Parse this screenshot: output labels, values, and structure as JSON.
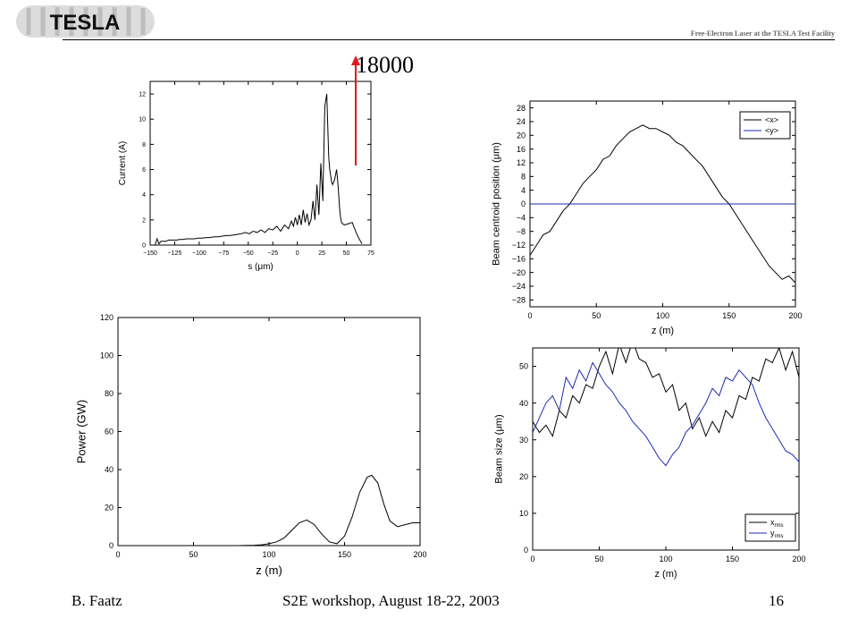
{
  "header": {
    "logo_text": "TESLA",
    "subtitle": "Free-Electron Laser at the TESLA Test Facility"
  },
  "annotation": {
    "value": "18000",
    "arrow_color": "#e0191c"
  },
  "footer": {
    "author": "B. Faatz",
    "event": "S2E workshop, August 18-22, 2003",
    "page": "16"
  },
  "chart_data": [
    {
      "id": "current",
      "type": "line",
      "xlabel": "s (μm)",
      "ylabel": "Current (A)",
      "xlim": [
        -150,
        75
      ],
      "ylim": [
        0,
        13
      ],
      "xticks": [
        -150,
        -125,
        -100,
        -75,
        -50,
        -25,
        0,
        25,
        50,
        75
      ],
      "yticks": [
        0,
        2,
        4,
        6,
        8,
        10,
        12
      ],
      "series": [
        {
          "color": "#000000",
          "x": [
            -145,
            -143,
            -141,
            -139,
            -137,
            -134,
            -131,
            -127,
            -123,
            -120,
            -117,
            -113,
            -109,
            -105,
            -101,
            -97,
            -93,
            -89,
            -85,
            -81,
            -77,
            -73,
            -69,
            -65,
            -61,
            -57,
            -53,
            -49,
            -45,
            -41,
            -37,
            -33,
            -29,
            -25,
            -21,
            -17,
            -13,
            -9,
            -6,
            -4,
            -2,
            0,
            2,
            4,
            6,
            8,
            10,
            12,
            14,
            16,
            18,
            20,
            22,
            24,
            26,
            28,
            30,
            31,
            32,
            33,
            34,
            35,
            36,
            37,
            38,
            39,
            40,
            41,
            42,
            43,
            44,
            45,
            46,
            48,
            52,
            56,
            60,
            63,
            66
          ],
          "y": [
            0,
            0.5,
            0.1,
            0.3,
            0.3,
            0.3,
            0.4,
            0.4,
            0.4,
            0.45,
            0.45,
            0.5,
            0.5,
            0.5,
            0.55,
            0.55,
            0.6,
            0.6,
            0.65,
            0.65,
            0.7,
            0.75,
            0.75,
            0.8,
            0.85,
            0.9,
            1.0,
            0.9,
            1.1,
            1.0,
            1.2,
            1.0,
            1.3,
            1.2,
            1.5,
            1.1,
            1.6,
            1.3,
            1.9,
            1.5,
            2.2,
            1.6,
            2.4,
            1.6,
            2.8,
            1.8,
            2.5,
            1.6,
            2.0,
            3.5,
            2.0,
            4.8,
            2.4,
            6.5,
            3.5,
            11.0,
            12.0,
            9.5,
            7.0,
            6.0,
            5.5,
            5.0,
            4.8,
            5.0,
            5.2,
            5.6,
            6.0,
            5.2,
            4.2,
            3.0,
            2.2,
            1.8,
            1.7,
            1.6,
            1.7,
            1.8,
            1.0,
            0.5,
            0.1
          ]
        }
      ]
    },
    {
      "id": "centroid",
      "type": "line",
      "xlabel": "z (m)",
      "ylabel": "Beam centroid position (μm)",
      "xlim": [
        0,
        200
      ],
      "ylim": [
        -30,
        30
      ],
      "xticks": [
        0,
        50,
        100,
        150,
        200
      ],
      "yticks": [
        28,
        24,
        20,
        16,
        12,
        8,
        4,
        0,
        -4,
        -8,
        -12,
        -16,
        -20,
        -24,
        -28
      ],
      "legend": "top-right",
      "series": [
        {
          "name": "<x>",
          "color": "#000000",
          "x": [
            0,
            5,
            10,
            15,
            20,
            25,
            30,
            35,
            40,
            45,
            50,
            55,
            60,
            65,
            70,
            75,
            80,
            85,
            90,
            95,
            100,
            105,
            110,
            115,
            120,
            125,
            130,
            135,
            140,
            145,
            150,
            155,
            160,
            165,
            170,
            175,
            180,
            185,
            190,
            195,
            200
          ],
          "y": [
            -15,
            -12,
            -9,
            -8,
            -5,
            -2,
            0,
            3,
            6,
            8,
            10,
            13,
            14,
            17,
            19,
            21,
            22,
            23,
            22,
            22,
            21,
            20,
            18,
            17,
            15,
            13,
            11,
            8,
            5,
            2,
            0,
            -3,
            -6,
            -9,
            -12,
            -15,
            -18,
            -20,
            -22,
            -21,
            -23
          ]
        },
        {
          "name": "<y>",
          "color": "#1f2bb0",
          "x": [
            0,
            200
          ],
          "y": [
            0,
            0
          ]
        }
      ]
    },
    {
      "id": "power",
      "type": "line",
      "xlabel": "z (m)",
      "ylabel": "Power (GW)",
      "xlim": [
        0,
        200
      ],
      "ylim": [
        0,
        120
      ],
      "xticks": [
        0,
        50,
        100,
        150,
        200
      ],
      "yticks": [
        0,
        20,
        40,
        60,
        80,
        100,
        120
      ],
      "series": [
        {
          "color": "#000000",
          "x": [
            0,
            40,
            60,
            80,
            90,
            95,
            100,
            105,
            110,
            115,
            120,
            125,
            130,
            135,
            140,
            145,
            150,
            155,
            160,
            165,
            168,
            172,
            176,
            180,
            185,
            190,
            195,
            200
          ],
          "y": [
            0,
            0,
            0,
            0,
            0.2,
            0.4,
            1,
            2,
            4,
            8,
            12,
            13.5,
            11,
            6,
            2,
            1,
            5,
            15,
            28,
            36,
            37,
            33,
            22,
            13,
            10,
            11,
            12,
            12
          ]
        }
      ]
    },
    {
      "id": "size",
      "type": "line",
      "xlabel": "z (m)",
      "ylabel": "Beam size (μm)",
      "xlim": [
        0,
        200
      ],
      "ylim": [
        0,
        55
      ],
      "xticks": [
        0,
        50,
        100,
        150,
        200
      ],
      "yticks": [
        0,
        10,
        20,
        30,
        40,
        50
      ],
      "legend": "bottom-right",
      "series": [
        {
          "name": "x",
          "subscript": "rms",
          "color": "#000000",
          "x": [
            0,
            5,
            10,
            15,
            20,
            25,
            30,
            35,
            40,
            45,
            50,
            55,
            60,
            65,
            70,
            75,
            80,
            85,
            90,
            95,
            100,
            105,
            110,
            115,
            120,
            125,
            130,
            135,
            140,
            145,
            150,
            155,
            160,
            165,
            170,
            175,
            180,
            185,
            190,
            195,
            200
          ],
          "y": [
            35,
            32,
            34,
            31,
            38,
            36,
            42,
            40,
            45,
            44,
            50,
            54,
            48,
            56,
            51,
            57,
            52,
            51,
            47,
            48,
            43,
            45,
            38,
            40,
            33,
            36,
            31,
            35,
            32,
            38,
            36,
            42,
            41,
            47,
            46,
            52,
            51,
            55,
            49,
            54,
            47
          ]
        },
        {
          "name": "y",
          "subscript": "rms",
          "color": "#1f2bb0",
          "x": [
            0,
            5,
            10,
            15,
            20,
            25,
            30,
            35,
            40,
            45,
            50,
            55,
            60,
            65,
            70,
            75,
            80,
            85,
            90,
            95,
            100,
            105,
            110,
            115,
            120,
            125,
            130,
            135,
            140,
            145,
            150,
            155,
            160,
            165,
            170,
            175,
            180,
            185,
            190,
            195,
            200
          ],
          "y": [
            32,
            36,
            40,
            42,
            38,
            47,
            44,
            49,
            46,
            51,
            48,
            45,
            43,
            40,
            38,
            35,
            33,
            31,
            28,
            25,
            23,
            26,
            28,
            32,
            34,
            37,
            40,
            44,
            42,
            47,
            46,
            49,
            47,
            45,
            40,
            36,
            33,
            30,
            27,
            26,
            24
          ]
        }
      ]
    }
  ]
}
